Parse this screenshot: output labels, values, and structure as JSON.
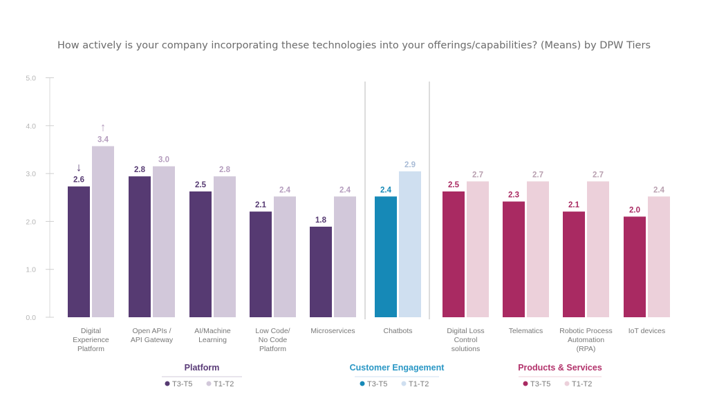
{
  "chart_data": {
    "type": "bar",
    "title": "How actively is your company incorporating these technologies into your offerings/capabilities? (Means) by DPW Tiers",
    "xlabel": "",
    "ylabel": "",
    "ylim": [
      0,
      5
    ],
    "yticks": [
      "0.0",
      "1.0",
      "2.0",
      "3.0",
      "4.0",
      "5.0"
    ],
    "grid": false,
    "categories": [
      {
        "label": [
          "Digital",
          "Experience",
          "Platform"
        ],
        "group": "platform"
      },
      {
        "label": [
          "Open APIs /",
          "API Gateway"
        ],
        "group": "platform"
      },
      {
        "label": [
          "AI/Machine",
          "Learning"
        ],
        "group": "platform"
      },
      {
        "label": [
          "Low Code/",
          "No Code",
          "Platform"
        ],
        "group": "platform"
      },
      {
        "label": [
          "Microservices"
        ],
        "group": "platform"
      },
      {
        "label": [
          "Chatbots"
        ],
        "group": "customer"
      },
      {
        "label": [
          "Digital Loss",
          "Control",
          "solutions"
        ],
        "group": "products"
      },
      {
        "label": [
          "Telematics"
        ],
        "group": "products"
      },
      {
        "label": [
          "Robotic Process",
          "Automation",
          "(RPA)"
        ],
        "group": "products"
      },
      {
        "label": [
          "IoT devices"
        ],
        "group": "products"
      }
    ],
    "series": [
      {
        "name": "T3-T5",
        "values": [
          2.6,
          2.8,
          2.5,
          2.1,
          1.8,
          2.4,
          2.5,
          2.3,
          2.1,
          2.0
        ],
        "labels": [
          "2.6",
          "2.8",
          "2.5",
          "2.1",
          "1.8",
          "2.4",
          "2.5",
          "2.3",
          "2.1",
          "2.0"
        ]
      },
      {
        "name": "T1-T2",
        "values": [
          3.4,
          3.0,
          2.8,
          2.4,
          2.4,
          2.9,
          2.7,
          2.7,
          2.7,
          2.4
        ],
        "labels": [
          "3.4",
          "3.0",
          "2.8",
          "2.4",
          "2.4",
          "2.9",
          "2.7",
          "2.7",
          "2.7",
          "2.4"
        ]
      }
    ],
    "annotations": [
      {
        "category": 0,
        "series": "T3-T5",
        "symbol": "↓"
      },
      {
        "category": 0,
        "series": "T1-T2",
        "symbol": "↑"
      }
    ],
    "groups": {
      "platform": {
        "title": "Platform",
        "dark": "#563a72",
        "light": "#d2c8da",
        "title_color": "#5a3b78",
        "label_dark": "#563a72",
        "label_light": "#b49cbd",
        "legend": [
          "T3-T5",
          "T1-T2"
        ]
      },
      "customer": {
        "title": "Customer Engagement",
        "dark": "#1689b7",
        "light": "#cfdff0",
        "title_color": "#2a97c5",
        "label_dark": "#1689b7",
        "label_light": "#a9bcd6",
        "legend": [
          "T3-T5",
          "T1-T2"
        ]
      },
      "products": {
        "title": "Products & Services",
        "dark": "#a92a62",
        "light": "#ecd0da",
        "title_color": "#b2326b",
        "label_dark": "#a92a62",
        "label_light": "#b9a0b0",
        "legend": [
          "T3-T5",
          "T1-T2"
        ]
      }
    }
  }
}
